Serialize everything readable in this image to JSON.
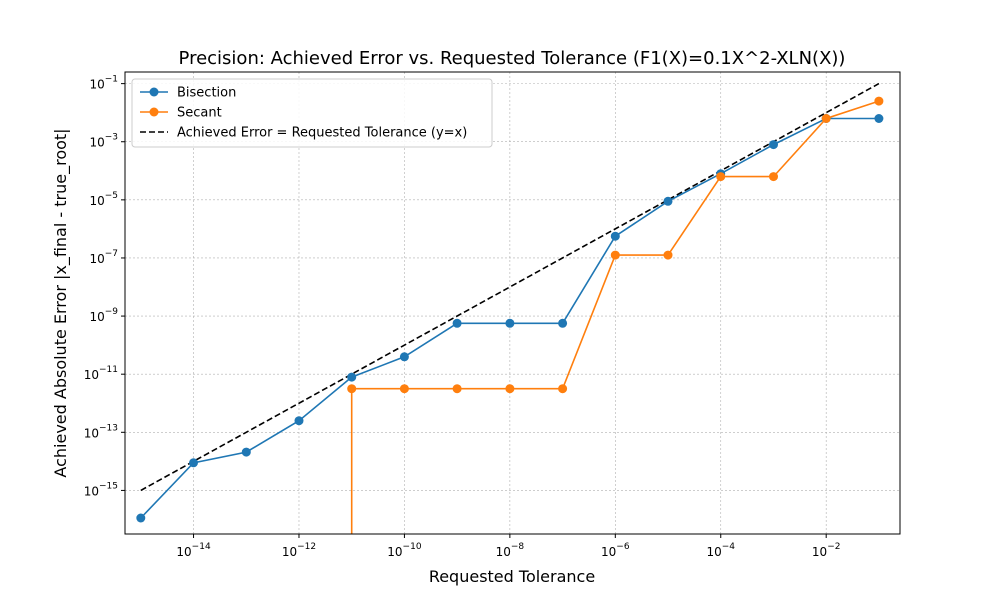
{
  "chart_data": {
    "type": "line",
    "title": "Precision: Achieved Error vs. Requested Tolerance (F1(X)=0.1X^2-XLN(X))",
    "xlabel": "Requested Tolerance",
    "ylabel": "Achieved Absolute Error |x_final - true_root|",
    "x_scale": "log",
    "y_scale": "log",
    "xlim_exp": [
      -15.3,
      -0.6
    ],
    "ylim_exp": [
      -16.5,
      -0.6
    ],
    "x_ticks": [
      {
        "exp": -14,
        "label_base": "10",
        "label_exp": "−14"
      },
      {
        "exp": -12,
        "label_base": "10",
        "label_exp": "−12"
      },
      {
        "exp": -10,
        "label_base": "10",
        "label_exp": "−10"
      },
      {
        "exp": -8,
        "label_base": "10",
        "label_exp": "−8"
      },
      {
        "exp": -6,
        "label_base": "10",
        "label_exp": "−6"
      },
      {
        "exp": -4,
        "label_base": "10",
        "label_exp": "−4"
      },
      {
        "exp": -2,
        "label_base": "10",
        "label_exp": "−2"
      }
    ],
    "y_ticks": [
      {
        "exp": -15,
        "label_base": "10",
        "label_exp": "−15"
      },
      {
        "exp": -13,
        "label_base": "10",
        "label_exp": "−13"
      },
      {
        "exp": -11,
        "label_base": "10",
        "label_exp": "−11"
      },
      {
        "exp": -9,
        "label_base": "10",
        "label_exp": "−9"
      },
      {
        "exp": -7,
        "label_base": "10",
        "label_exp": "−7"
      },
      {
        "exp": -5,
        "label_base": "10",
        "label_exp": "−5"
      },
      {
        "exp": -3,
        "label_base": "10",
        "label_exp": "−3"
      },
      {
        "exp": -1,
        "label_base": "10",
        "label_exp": "−1"
      }
    ],
    "grid": true,
    "legend_position": "top-left",
    "series": [
      {
        "name": "Bisection",
        "color": "#1f77b4",
        "marker": "circle",
        "x_exp": [
          -15,
          -14,
          -13,
          -12,
          -11,
          -10,
          -9,
          -8,
          -7,
          -6,
          -5,
          -4,
          -3,
          -2,
          -1
        ],
        "y_exp": [
          -15.95,
          -14.05,
          -13.68,
          -12.6,
          -11.1,
          -10.4,
          -9.25,
          -9.25,
          -9.25,
          -6.25,
          -5.05,
          -4.1,
          -3.1,
          -2.2,
          -2.2
        ]
      },
      {
        "name": "Secant",
        "color": "#ff7f0e",
        "marker": "circle",
        "x_exp": [
          -11,
          -10,
          -9,
          -8,
          -7,
          -6,
          -5,
          -4,
          -3,
          -2,
          -1
        ],
        "y_exp": [
          -11.5,
          -11.5,
          -11.5,
          -11.5,
          -11.5,
          -6.9,
          -6.9,
          -4.2,
          -4.2,
          -2.2,
          -1.6
        ],
        "drop_to_zero_at_first_point": true
      },
      {
        "name": "Achieved Error = Requested Tolerance (y=x)",
        "color": "#000000",
        "style": "dashed",
        "x_exp": [
          -15,
          -1
        ],
        "y_exp": [
          -15,
          -1
        ]
      }
    ]
  }
}
